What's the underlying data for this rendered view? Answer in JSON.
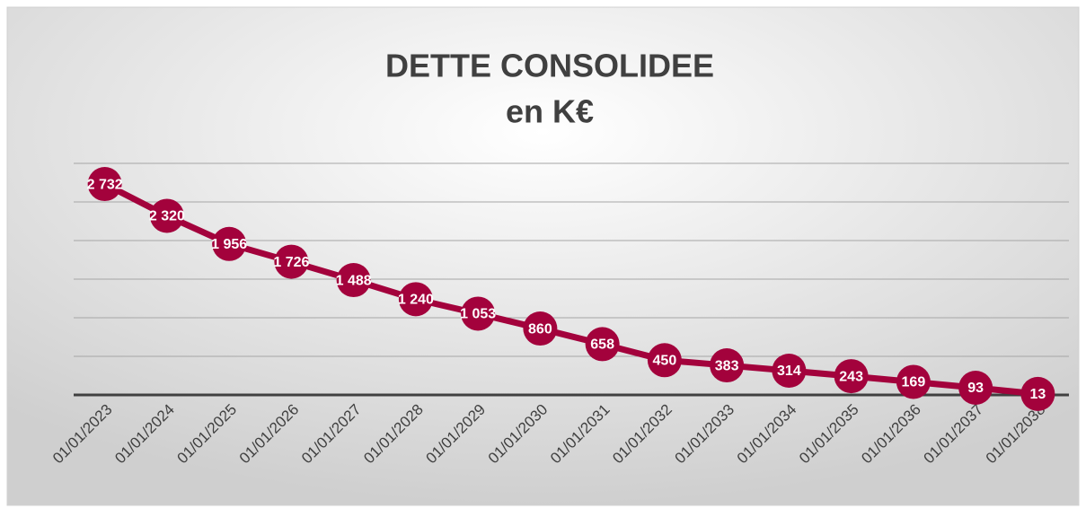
{
  "chart_data": {
    "type": "line",
    "title": "DETTE CONSOLIDEE",
    "subtitle": "en K€",
    "categories": [
      "01/01/2023",
      "01/01/2024",
      "01/01/2025",
      "01/01/2026",
      "01/01/2027",
      "01/01/2028",
      "01/01/2029",
      "01/01/2030",
      "01/01/2031",
      "01/01/2032",
      "01/01/2033",
      "01/01/2034",
      "01/01/2035",
      "01/01/2036",
      "01/01/2037",
      "01/01/2038"
    ],
    "values": [
      2732,
      2320,
      1956,
      1726,
      1488,
      1240,
      1053,
      860,
      658,
      450,
      383,
      314,
      243,
      169,
      93,
      13
    ],
    "value_labels": [
      "2 732",
      "2 320",
      "1 956",
      "1 726",
      "1 488",
      "1 240",
      "1 053",
      "860",
      "658",
      "450",
      "383",
      "314",
      "243",
      "169",
      "93",
      "13"
    ],
    "color": "#a3023c",
    "ylim": [
      0,
      3000
    ],
    "yticks": [
      0,
      500,
      1000,
      1500,
      2000,
      2500,
      3000
    ],
    "grid": true
  }
}
